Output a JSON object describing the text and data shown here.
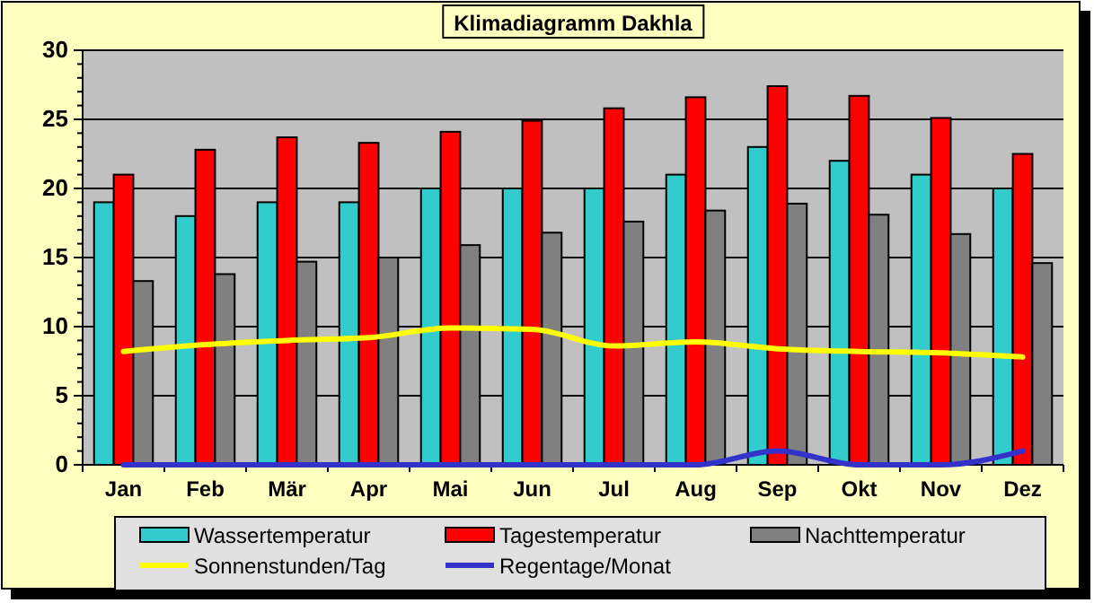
{
  "chart_data": {
    "type": "bar",
    "title": "Klimadiagramm Dakhla",
    "categories": [
      "Jan",
      "Feb",
      "Mär",
      "Apr",
      "Mai",
      "Jun",
      "Jul",
      "Aug",
      "Sep",
      "Okt",
      "Nov",
      "Dez"
    ],
    "series": [
      {
        "name": "Wassertemperatur",
        "color": "#33cccc",
        "values": [
          19,
          18,
          19,
          19,
          20,
          20,
          20,
          21,
          23,
          22,
          21,
          20
        ]
      },
      {
        "name": "Tagestemperatur",
        "color": "#ff0000",
        "values": [
          21,
          22.8,
          23.7,
          23.3,
          24.1,
          24.9,
          25.8,
          26.6,
          27.4,
          26.7,
          25.1,
          22.5
        ]
      },
      {
        "name": "Nachttemperatur",
        "color": "#808080",
        "values": [
          13.3,
          13.8,
          14.7,
          15,
          15.9,
          16.8,
          17.6,
          18.4,
          18.9,
          18.1,
          16.7,
          14.6
        ]
      },
      {
        "name": "Sonnenstunden/Tag",
        "type": "line",
        "color": "#ffff00",
        "values": [
          8.2,
          8.7,
          9,
          9.2,
          9.9,
          9.8,
          8.6,
          8.9,
          8.4,
          8.2,
          8.1,
          7.8
        ]
      },
      {
        "name": "Regentage/Monat",
        "type": "line",
        "color": "#3333cc",
        "values": [
          0,
          0,
          0,
          0,
          0,
          0,
          0,
          0,
          1,
          0,
          0,
          1
        ]
      }
    ],
    "ylim": [
      0,
      30
    ],
    "yticks": [
      0,
      5,
      10,
      15,
      20,
      25,
      30
    ],
    "grid": "y",
    "legend": "bottom"
  }
}
